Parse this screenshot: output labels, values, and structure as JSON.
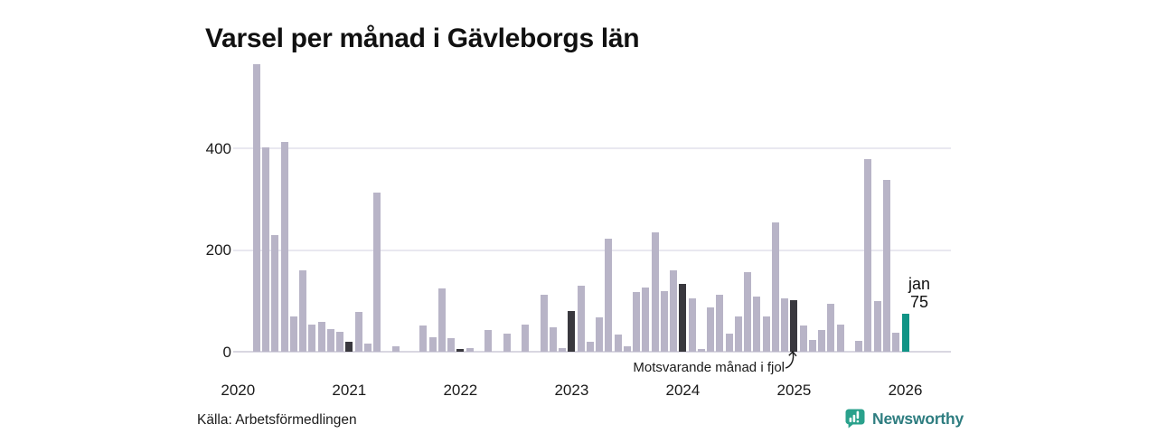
{
  "title": "Varsel per månad i Gävleborgs län",
  "source": "Källa: Arbetsförmedlingen",
  "logo": {
    "name": "Newsworthy",
    "icon": "speech-bubble-bar-chart",
    "icon_color": "#2aa18c",
    "text_color": "#2e7d80"
  },
  "colors": {
    "bar": "#b8b4c7",
    "dark_bar": "#39383e",
    "current_bar": "#109486",
    "grid": "#e9e8f0",
    "zero_line": "#d9d7e1"
  },
  "chart_data": {
    "type": "bar",
    "title": "Varsel per månad i Gävleborgs län",
    "xlabel": "",
    "ylabel": "",
    "ylim": [
      0,
      580
    ],
    "yticks": [
      0,
      200,
      400
    ],
    "grid": "horizontal",
    "x_tick_labels": [
      "2020",
      "2021",
      "2022",
      "2023",
      "2024",
      "2025",
      "2026"
    ],
    "start_month": "2020-01",
    "months_per_year": 12,
    "values": [
      0,
      0,
      566,
      402,
      230,
      413,
      70,
      161,
      53,
      59,
      44,
      39,
      20,
      78,
      16,
      313,
      0,
      10,
      0,
      0,
      51,
      28,
      124,
      27,
      5,
      7,
      0,
      42,
      0,
      35,
      0,
      53,
      0,
      112,
      48,
      7,
      81,
      130,
      19,
      68,
      222,
      34,
      10,
      118,
      126,
      235,
      119,
      161,
      133,
      105,
      6,
      88,
      113,
      36,
      69,
      157,
      109,
      70,
      254,
      105,
      102,
      51,
      23,
      43,
      95,
      54,
      0,
      21,
      379,
      100,
      338,
      38,
      75
    ],
    "dark_indices": [
      12,
      24,
      36,
      48,
      60
    ],
    "current_index": 72,
    "annotation": "Motsvarande månad i fjol",
    "current_point": {
      "label": "jan",
      "value_str": "75",
      "value": 75
    }
  }
}
